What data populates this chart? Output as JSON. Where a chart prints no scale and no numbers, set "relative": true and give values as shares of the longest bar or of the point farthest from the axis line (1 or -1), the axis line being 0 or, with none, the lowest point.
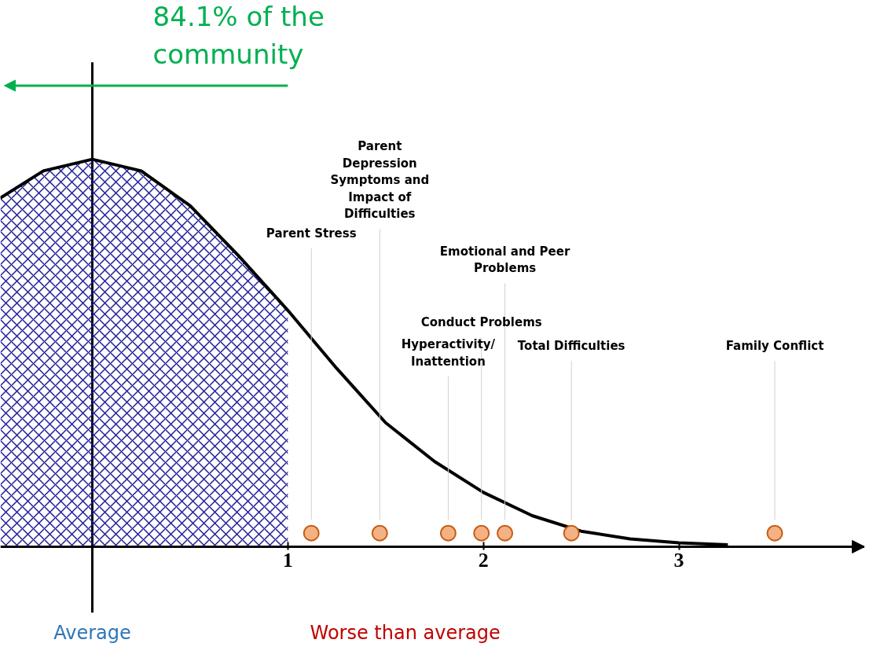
{
  "chart_data": {
    "type": "line",
    "relative": true,
    "xlim": [
      -0.47,
      3.95
    ],
    "xticks": [
      1,
      2,
      3
    ],
    "grid": false,
    "ref_lines": [
      {
        "axis": "x",
        "value": 0
      }
    ],
    "series": [
      {
        "type": "area",
        "color": "#1f1f99",
        "x": [
          -0.47,
          -0.25,
          0,
          0.25,
          0.5,
          0.75,
          1
        ],
        "values": [
          0.9,
          0.97,
          1,
          0.97,
          0.88,
          0.75,
          0.61
        ]
      },
      {
        "color": "#000000",
        "x": [
          -0.47,
          -0.25,
          0,
          0.25,
          0.5,
          0.75,
          1,
          1.25,
          1.5,
          1.75,
          2,
          2.25,
          2.5,
          2.75,
          3,
          3.25
        ],
        "values": [
          0.9,
          0.97,
          1,
          0.97,
          0.88,
          0.75,
          0.61,
          0.46,
          0.32,
          0.22,
          0.14,
          0.08,
          0.04,
          0.02,
          0.01,
          0.005
        ]
      },
      {
        "type": "scatter",
        "color": "#f4b183",
        "marker": "circle",
        "x": [
          1.12,
          1.47,
          1.82,
          1.99,
          2.11,
          2.45,
          3.49
        ],
        "values": [
          0.035,
          0.035,
          0.035,
          0.035,
          0.035,
          0.035,
          0.035
        ]
      }
    ],
    "annotations": [
      "84.1% of the\ncommunity",
      "Average",
      "Worse than average",
      "Parent Stress",
      "Parent\nDepression\nSymptoms and\nImpact of\nDifficulties",
      "Conduct Problems",
      "Hyperactivity/\nInattention",
      "Emotional and Peer\nProblems",
      "Total Difficulties",
      "Family Conflict"
    ]
  }
}
